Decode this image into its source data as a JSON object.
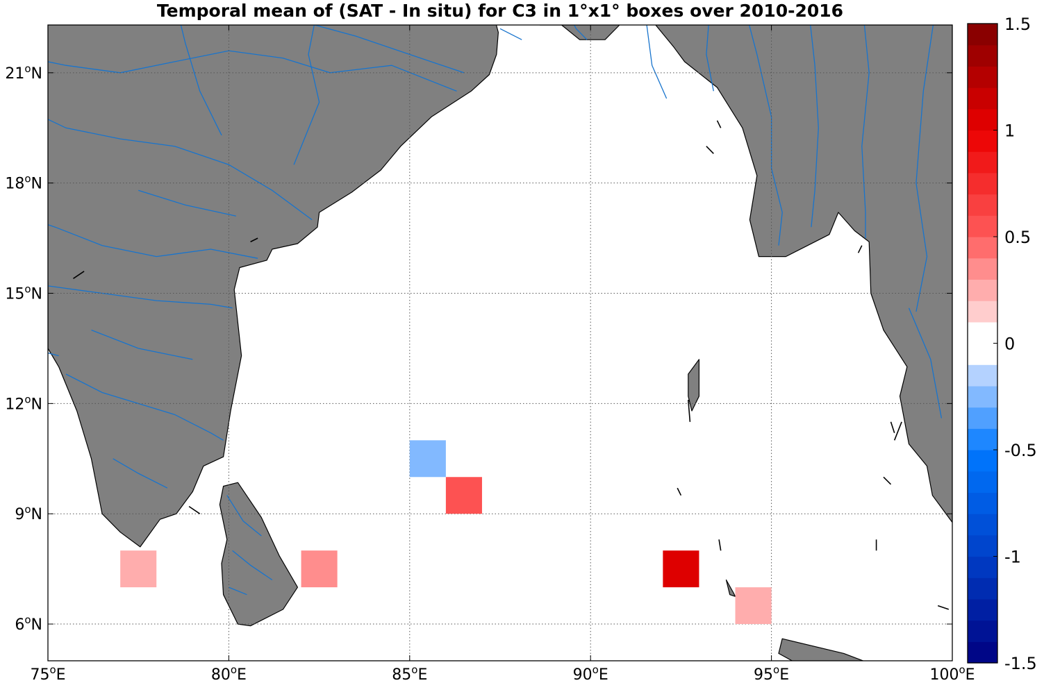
{
  "title": "Temporal mean of (SAT - In situ) for C3 in 1°x1° boxes over 2010-2016",
  "map": {
    "lon_range": [
      75,
      100
    ],
    "lat_range": [
      5,
      22.3
    ],
    "land_color": "#808080",
    "river_color": "#1874cd",
    "ocean_color": "#ffffff",
    "grid": "dotted"
  },
  "x_ticks": [
    {
      "value": 75,
      "deg": "75",
      "unit": "o",
      "hemi": "E"
    },
    {
      "value": 80,
      "deg": "80",
      "unit": "o",
      "hemi": "E"
    },
    {
      "value": 85,
      "deg": "85",
      "unit": "o",
      "hemi": "E"
    },
    {
      "value": 90,
      "deg": "90",
      "unit": "o",
      "hemi": "E"
    },
    {
      "value": 95,
      "deg": "95",
      "unit": "o",
      "hemi": "E"
    },
    {
      "value": 100,
      "deg": "100",
      "unit": "o",
      "hemi": "E"
    }
  ],
  "y_ticks": [
    {
      "value": 6,
      "deg": "6",
      "unit": "o",
      "hemi": "N"
    },
    {
      "value": 9,
      "deg": "9",
      "unit": "o",
      "hemi": "N"
    },
    {
      "value": 12,
      "deg": "12",
      "unit": "o",
      "hemi": "N"
    },
    {
      "value": 15,
      "deg": "15",
      "unit": "o",
      "hemi": "N"
    },
    {
      "value": 18,
      "deg": "18",
      "unit": "o",
      "hemi": "N"
    },
    {
      "value": 21,
      "deg": "21",
      "unit": "o",
      "hemi": "N"
    }
  ],
  "colorbar": {
    "min": -1.5,
    "max": 1.5,
    "steps": 30,
    "tick_values": [
      1.5,
      1,
      0.5,
      0,
      -0.5,
      -1,
      -1.5
    ],
    "tick_labels": [
      "1.5",
      "1",
      "0.5",
      "0",
      "-0.5",
      "-1",
      "-1.5"
    ]
  },
  "chart_data": {
    "type": "heatmap",
    "title": "Temporal mean of (SAT - In situ) for C3 in 1°x1° boxes over 2010-2016",
    "x_range": [
      75,
      100
    ],
    "y_range": [
      5,
      22.3
    ],
    "cells": [
      {
        "lon": 77.5,
        "lat": 7.5,
        "value": 0.25
      },
      {
        "lon": 82.5,
        "lat": 7.5,
        "value": 0.4
      },
      {
        "lon": 85.5,
        "lat": 10.5,
        "value": -0.25
      },
      {
        "lon": 86.5,
        "lat": 9.5,
        "value": 0.55
      },
      {
        "lon": 92.5,
        "lat": 7.5,
        "value": 1.05
      },
      {
        "lon": 94.5,
        "lat": 6.5,
        "value": 0.25
      }
    ],
    "colorbar_range": [
      -1.5,
      1.5
    ]
  }
}
